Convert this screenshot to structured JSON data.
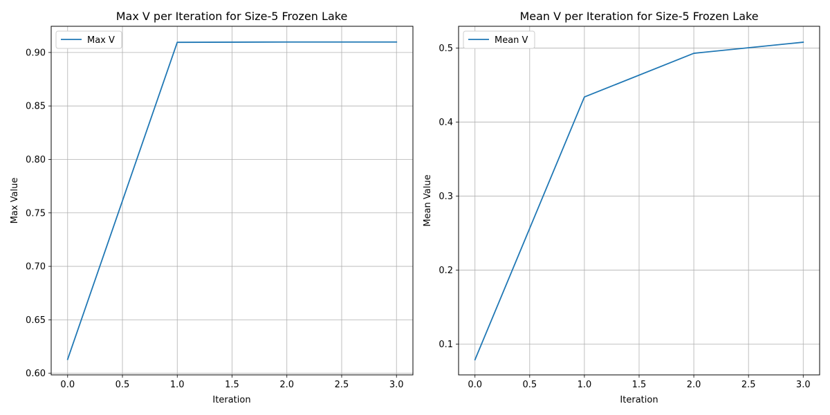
{
  "chart_data": [
    {
      "type": "line",
      "title": "Max V per Iteration for Size-5 Frozen Lake",
      "xlabel": "Iteration",
      "ylabel": "Max Value",
      "xlim": [
        -0.15,
        3.15
      ],
      "ylim": [
        0.5985,
        0.9245
      ],
      "xticks": [
        "0.0",
        "0.5",
        "1.0",
        "1.5",
        "2.0",
        "2.5",
        "3.0"
      ],
      "yticks": [
        "0.60",
        "0.65",
        "0.70",
        "0.75",
        "0.80",
        "0.85",
        "0.90"
      ],
      "grid": true,
      "legend": "top-left",
      "series": [
        {
          "name": "Max V",
          "color": "#1f77b4",
          "x": [
            0,
            1,
            2,
            3
          ],
          "y": [
            0.613,
            0.9095,
            0.9098,
            0.9098
          ]
        }
      ]
    },
    {
      "type": "line",
      "title": "Mean V per Iteration for Size-5 Frozen Lake",
      "xlabel": "Iteration",
      "ylabel": "Mean Value",
      "xlim": [
        -0.15,
        3.15
      ],
      "ylim": [
        0.0585,
        0.5295
      ],
      "xticks": [
        "0.0",
        "0.5",
        "1.0",
        "1.5",
        "2.0",
        "2.5",
        "3.0"
      ],
      "yticks": [
        "0.1",
        "0.2",
        "0.3",
        "0.4",
        "0.5"
      ],
      "grid": true,
      "legend": "top-left",
      "series": [
        {
          "name": "Mean V",
          "color": "#1f77b4",
          "x": [
            0,
            1,
            2,
            3
          ],
          "y": [
            0.079,
            0.434,
            0.493,
            0.508
          ]
        }
      ]
    }
  ]
}
